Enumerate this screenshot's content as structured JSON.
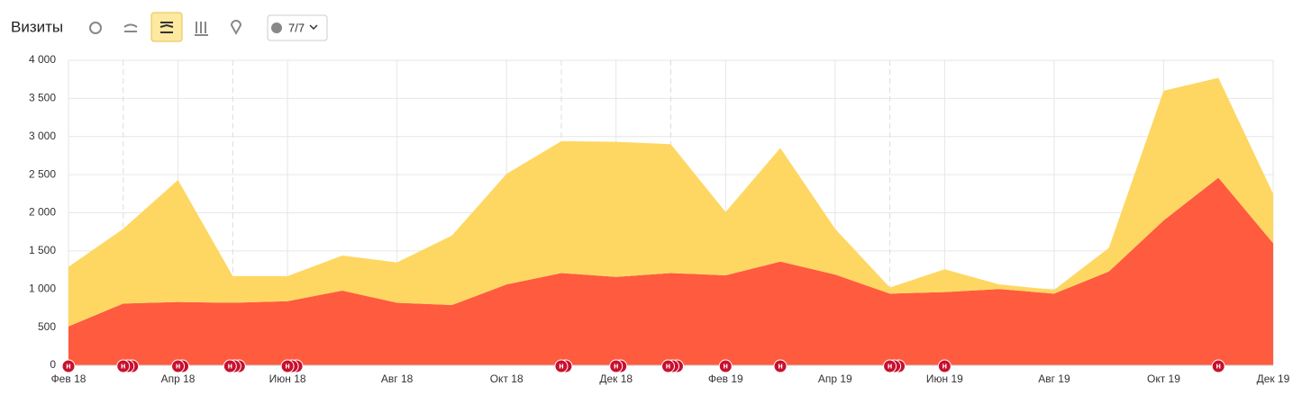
{
  "header": {
    "title": "Визиты",
    "filter_button": "7/7"
  },
  "chart_data": {
    "type": "stacked_area",
    "categories": [
      "Фев 18",
      null,
      "Апр 18",
      null,
      "Июн 18",
      null,
      "Авг 18",
      null,
      "Окт 18",
      null,
      "Дек 18",
      null,
      "Фев 19",
      null,
      "Апр 19",
      null,
      "Июн 19",
      null,
      "Авг 19",
      null,
      "Окт 19",
      null,
      "Дек 19"
    ],
    "series": [
      {
        "color": "#ff5b3f",
        "values": [
          510,
          810,
          830,
          820,
          840,
          980,
          820,
          790,
          1060,
          1210,
          1160,
          1210,
          1180,
          1360,
          1190,
          940,
          960,
          1000,
          940,
          1230,
          1900,
          2460,
          1600
        ]
      },
      {
        "color": "#fed762",
        "values": [
          780,
          980,
          1600,
          350,
          330,
          460,
          530,
          910,
          1450,
          1730,
          1770,
          1690,
          830,
          1490,
          600,
          80,
          300,
          60,
          50,
          310,
          1700,
          1310,
          650
        ]
      }
    ],
    "ylim": [
      0,
      4000
    ],
    "yticks": [
      0,
      500,
      {
        "value": 1000,
        "label": "1 000"
      },
      {
        "value": 1500,
        "label": "1 500"
      },
      {
        "value": 2000,
        "label": "2 000"
      },
      {
        "value": 2500,
        "label": "2 500"
      },
      {
        "value": 3000,
        "label": "3 000"
      },
      {
        "value": 3500,
        "label": "3 500"
      },
      {
        "value": 4000,
        "label": "4 000"
      }
    ],
    "grid": true,
    "annotation_label": "н"
  }
}
